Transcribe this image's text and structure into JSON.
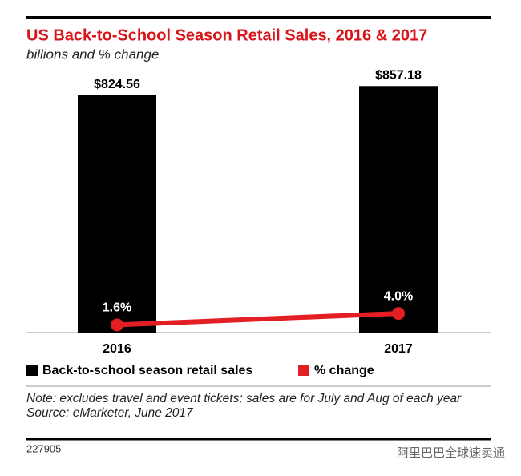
{
  "chart_data": {
    "type": "bar",
    "title": "US Back-to-School Season Retail Sales, 2016 & 2017",
    "subtitle": "billions and % change",
    "categories": [
      "2016",
      "2017"
    ],
    "series": [
      {
        "name": "Back-to-school season retail sales",
        "type": "bar",
        "color": "#000000",
        "values": [
          824.56,
          857.18
        ],
        "value_labels": [
          "$824.56",
          "$857.18"
        ]
      },
      {
        "name": "% change",
        "type": "line",
        "axis": "y2",
        "color": "#e31e24",
        "values": [
          1.6,
          4.0
        ],
        "value_labels": [
          "1.6%",
          "4.0%"
        ]
      }
    ],
    "ylim": [
      0,
      1000
    ],
    "y2lim": [
      0,
      60
    ],
    "note": "Note: excludes travel and event tickets; sales are for July and Aug of each year",
    "source": "Source: eMarketer, June 2017",
    "chart_id": "227905",
    "watermark": "阿里巴巴全球速卖通"
  }
}
